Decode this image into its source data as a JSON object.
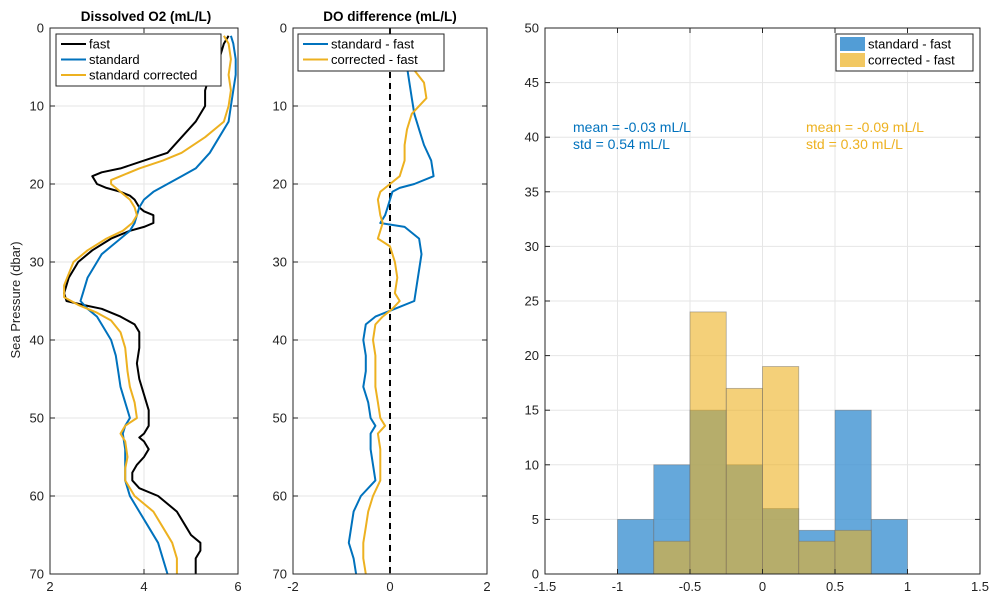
{
  "colors": {
    "fast": "#000000",
    "standard": "#0072BD",
    "corrected": "#EDB120",
    "hist_standard": "#3A8FD0",
    "hist_corrected": "#EDB120",
    "zero_line": "#000000",
    "grid": "#e6e6e6"
  },
  "chart_data": [
    {
      "type": "line",
      "title": "Dissolved O2 (mL/L)",
      "xlabel": "",
      "ylabel": "Sea Pressure (dbar)",
      "xlim": [
        2,
        6
      ],
      "ylim": [
        70,
        0
      ],
      "y_reversed": true,
      "xticks": [
        2,
        4,
        6
      ],
      "yticks": [
        0,
        10,
        20,
        30,
        40,
        50,
        60,
        70
      ],
      "grid": true,
      "legend": {
        "position": "top-right",
        "entries": [
          "fast",
          "standard",
          "standard corrected"
        ]
      },
      "series": [
        {
          "name": "fast",
          "color_key": "fast",
          "points": [
            [
              5.8,
              1
            ],
            [
              5.7,
              2
            ],
            [
              5.6,
              4
            ],
            [
              5.4,
              6
            ],
            [
              5.3,
              8
            ],
            [
              5.3,
              10
            ],
            [
              5.1,
              12
            ],
            [
              4.8,
              14
            ],
            [
              4.5,
              16
            ],
            [
              4.0,
              17
            ],
            [
              3.5,
              18
            ],
            [
              3.1,
              18.5
            ],
            [
              2.9,
              19
            ],
            [
              3.0,
              20
            ],
            [
              3.2,
              20.5
            ],
            [
              3.5,
              21
            ],
            [
              3.7,
              21.5
            ],
            [
              3.8,
              22
            ],
            [
              3.9,
              23
            ],
            [
              4.0,
              23.5
            ],
            [
              4.2,
              24
            ],
            [
              4.2,
              25
            ],
            [
              4.0,
              25.5
            ],
            [
              3.7,
              26
            ],
            [
              3.3,
              27
            ],
            [
              2.9,
              28.5
            ],
            [
              2.6,
              30
            ],
            [
              2.4,
              32
            ],
            [
              2.3,
              34
            ],
            [
              2.35,
              35
            ],
            [
              2.7,
              35.5
            ],
            [
              3.1,
              36
            ],
            [
              3.5,
              37
            ],
            [
              3.8,
              38
            ],
            [
              3.9,
              39
            ],
            [
              3.9,
              41
            ],
            [
              3.85,
              43
            ],
            [
              3.9,
              45
            ],
            [
              4.0,
              47
            ],
            [
              4.1,
              49
            ],
            [
              4.1,
              51
            ],
            [
              4.0,
              52
            ],
            [
              3.9,
              52.5
            ],
            [
              4.0,
              53
            ],
            [
              4.1,
              54
            ],
            [
              4.0,
              55
            ],
            [
              3.85,
              56
            ],
            [
              3.75,
              57
            ],
            [
              3.75,
              58
            ],
            [
              3.9,
              59
            ],
            [
              4.3,
              60
            ],
            [
              4.7,
              62
            ],
            [
              4.9,
              64
            ],
            [
              5.0,
              65
            ],
            [
              5.2,
              66
            ],
            [
              5.2,
              67
            ],
            [
              5.1,
              68
            ],
            [
              5.1,
              70
            ]
          ]
        },
        {
          "name": "standard",
          "color_key": "standard",
          "points": [
            [
              5.85,
              1
            ],
            [
              5.9,
              2
            ],
            [
              5.95,
              4
            ],
            [
              5.95,
              6
            ],
            [
              5.9,
              8
            ],
            [
              5.85,
              10
            ],
            [
              5.8,
              12
            ],
            [
              5.6,
              14
            ],
            [
              5.4,
              16
            ],
            [
              5.1,
              18
            ],
            [
              4.8,
              19
            ],
            [
              4.5,
              20
            ],
            [
              4.2,
              21
            ],
            [
              4.0,
              22
            ],
            [
              3.9,
              23
            ],
            [
              3.85,
              24
            ],
            [
              3.8,
              25
            ],
            [
              3.7,
              26
            ],
            [
              3.5,
              27
            ],
            [
              3.3,
              28
            ],
            [
              3.1,
              29
            ],
            [
              3.0,
              30
            ],
            [
              2.8,
              32
            ],
            [
              2.7,
              34
            ],
            [
              2.65,
              35
            ],
            [
              2.8,
              36
            ],
            [
              3.0,
              37
            ],
            [
              3.1,
              38
            ],
            [
              3.3,
              40
            ],
            [
              3.4,
              42
            ],
            [
              3.45,
              44
            ],
            [
              3.5,
              46
            ],
            [
              3.6,
              48
            ],
            [
              3.7,
              50
            ],
            [
              3.6,
              51
            ],
            [
              3.55,
              52
            ],
            [
              3.6,
              54
            ],
            [
              3.6,
              56
            ],
            [
              3.6,
              57
            ],
            [
              3.6,
              58
            ],
            [
              3.7,
              60
            ],
            [
              3.9,
              62
            ],
            [
              4.1,
              64
            ],
            [
              4.3,
              66
            ],
            [
              4.4,
              68
            ],
            [
              4.5,
              70
            ]
          ]
        },
        {
          "name": "standard corrected",
          "color_key": "corrected",
          "points": [
            [
              5.7,
              1
            ],
            [
              5.8,
              2
            ],
            [
              5.85,
              4
            ],
            [
              5.8,
              6
            ],
            [
              5.85,
              8
            ],
            [
              5.8,
              10
            ],
            [
              5.7,
              12
            ],
            [
              5.3,
              14
            ],
            [
              4.8,
              16
            ],
            [
              4.4,
              17
            ],
            [
              3.9,
              18
            ],
            [
              3.5,
              19
            ],
            [
              3.3,
              19.5
            ],
            [
              3.3,
              20
            ],
            [
              3.5,
              21
            ],
            [
              3.7,
              22
            ],
            [
              3.8,
              23
            ],
            [
              3.85,
              24
            ],
            [
              3.75,
              25
            ],
            [
              3.55,
              26
            ],
            [
              3.2,
              27
            ],
            [
              2.8,
              28.5
            ],
            [
              2.5,
              30
            ],
            [
              2.3,
              33
            ],
            [
              2.3,
              34.5
            ],
            [
              2.6,
              35.5
            ],
            [
              3.0,
              36.5
            ],
            [
              3.3,
              37.5
            ],
            [
              3.5,
              39
            ],
            [
              3.6,
              41
            ],
            [
              3.65,
              44
            ],
            [
              3.7,
              46
            ],
            [
              3.8,
              48
            ],
            [
              3.85,
              50
            ],
            [
              3.6,
              51
            ],
            [
              3.5,
              52
            ],
            [
              3.6,
              53
            ],
            [
              3.65,
              55
            ],
            [
              3.6,
              56.5
            ],
            [
              3.6,
              58
            ],
            [
              3.8,
              60
            ],
            [
              4.2,
              62
            ],
            [
              4.4,
              64
            ],
            [
              4.6,
              66
            ],
            [
              4.7,
              68
            ],
            [
              4.7,
              70
            ]
          ]
        }
      ]
    },
    {
      "type": "line",
      "title": "DO difference (mL/L)",
      "xlabel": "",
      "ylabel": "",
      "xlim": [
        -2,
        2
      ],
      "ylim": [
        70,
        0
      ],
      "y_reversed": true,
      "xticks": [
        -2,
        0,
        2
      ],
      "yticks": [
        0,
        10,
        20,
        30,
        40,
        50,
        60,
        70
      ],
      "grid": true,
      "reference_line": {
        "x": 0,
        "style": "dashed"
      },
      "legend": {
        "position": "top-left",
        "entries": [
          "standard - fast",
          "corrected - fast"
        ]
      },
      "series": [
        {
          "name": "standard - fast",
          "color_key": "standard",
          "points": [
            [
              0.1,
              1
            ],
            [
              0.25,
              3
            ],
            [
              0.35,
              5
            ],
            [
              0.4,
              7
            ],
            [
              0.45,
              9
            ],
            [
              0.5,
              11
            ],
            [
              0.6,
              13
            ],
            [
              0.7,
              15
            ],
            [
              0.85,
              17
            ],
            [
              0.9,
              19
            ],
            [
              0.5,
              20
            ],
            [
              0.2,
              20.5
            ],
            [
              0.05,
              21
            ],
            [
              0.0,
              22
            ],
            [
              -0.05,
              23
            ],
            [
              -0.1,
              24
            ],
            [
              -0.2,
              25
            ],
            [
              0.3,
              25.5
            ],
            [
              0.6,
              27
            ],
            [
              0.65,
              29
            ],
            [
              0.6,
              31
            ],
            [
              0.55,
              33
            ],
            [
              0.5,
              35
            ],
            [
              0.1,
              36
            ],
            [
              -0.3,
              37
            ],
            [
              -0.5,
              38
            ],
            [
              -0.55,
              40
            ],
            [
              -0.5,
              42
            ],
            [
              -0.5,
              44
            ],
            [
              -0.55,
              46
            ],
            [
              -0.45,
              48
            ],
            [
              -0.4,
              50
            ],
            [
              -0.3,
              51
            ],
            [
              -0.4,
              52
            ],
            [
              -0.4,
              54
            ],
            [
              -0.35,
              56
            ],
            [
              -0.3,
              58
            ],
            [
              -0.6,
              60
            ],
            [
              -0.75,
              62
            ],
            [
              -0.8,
              64
            ],
            [
              -0.85,
              66
            ],
            [
              -0.75,
              68
            ],
            [
              -0.7,
              70
            ]
          ]
        },
        {
          "name": "corrected - fast",
          "color_key": "corrected",
          "points": [
            [
              -0.05,
              1
            ],
            [
              0.2,
              3
            ],
            [
              0.45,
              5
            ],
            [
              0.7,
              7
            ],
            [
              0.75,
              9
            ],
            [
              0.45,
              11
            ],
            [
              0.35,
              13
            ],
            [
              0.3,
              15
            ],
            [
              0.3,
              17
            ],
            [
              0.2,
              19
            ],
            [
              0.0,
              20
            ],
            [
              -0.2,
              21
            ],
            [
              -0.25,
              22
            ],
            [
              -0.2,
              24
            ],
            [
              -0.15,
              25
            ],
            [
              -0.25,
              27
            ],
            [
              0.0,
              28
            ],
            [
              0.1,
              30
            ],
            [
              0.15,
              32
            ],
            [
              0.1,
              34
            ],
            [
              0.2,
              35
            ],
            [
              0.05,
              36
            ],
            [
              -0.15,
              37
            ],
            [
              -0.3,
              38
            ],
            [
              -0.35,
              40
            ],
            [
              -0.3,
              42
            ],
            [
              -0.3,
              44
            ],
            [
              -0.3,
              46
            ],
            [
              -0.25,
              48
            ],
            [
              -0.2,
              50
            ],
            [
              -0.1,
              51
            ],
            [
              -0.25,
              52
            ],
            [
              -0.2,
              54
            ],
            [
              -0.2,
              56
            ],
            [
              -0.2,
              58
            ],
            [
              -0.35,
              60
            ],
            [
              -0.45,
              62
            ],
            [
              -0.5,
              64
            ],
            [
              -0.55,
              66
            ],
            [
              -0.55,
              68
            ],
            [
              -0.5,
              70
            ]
          ]
        }
      ]
    },
    {
      "type": "bar",
      "subtype": "histogram",
      "title": "",
      "xlabel": "",
      "ylabel": "",
      "xlim": [
        -1.5,
        1.5
      ],
      "ylim": [
        0,
        50
      ],
      "xticks": [
        -1.5,
        -1,
        -0.5,
        0,
        0.5,
        1,
        1.5
      ],
      "yticks": [
        0,
        5,
        10,
        15,
        20,
        25,
        30,
        35,
        40,
        45,
        50
      ],
      "grid": true,
      "legend": {
        "position": "top-right",
        "entries": [
          "standard - fast",
          "corrected - fast"
        ]
      },
      "series": [
        {
          "name": "standard - fast",
          "color_key": "hist_standard",
          "bins": [
            [
              -1.0,
              -0.75,
              5
            ],
            [
              -0.75,
              -0.5,
              10
            ],
            [
              -0.5,
              -0.25,
              15
            ],
            [
              -0.25,
              0.0,
              10
            ],
            [
              0.0,
              0.25,
              6
            ],
            [
              0.25,
              0.5,
              4
            ],
            [
              0.5,
              0.75,
              15
            ],
            [
              0.75,
              1.0,
              5
            ]
          ]
        },
        {
          "name": "corrected - fast",
          "color_key": "hist_corrected",
          "bins": [
            [
              -0.75,
              -0.5,
              3
            ],
            [
              -0.5,
              -0.25,
              24
            ],
            [
              -0.25,
              0.0,
              17
            ],
            [
              0.0,
              0.25,
              19
            ],
            [
              0.25,
              0.5,
              3
            ],
            [
              0.5,
              0.75,
              4
            ]
          ]
        }
      ],
      "annotations": [
        {
          "color_key": "standard",
          "line1": "mean = -0.03 mL/L",
          "line2": "std = 0.54 mL/L"
        },
        {
          "color_key": "corrected",
          "line1": "mean = -0.09 mL/L",
          "line2": "std = 0.30 mL/L"
        }
      ]
    }
  ]
}
